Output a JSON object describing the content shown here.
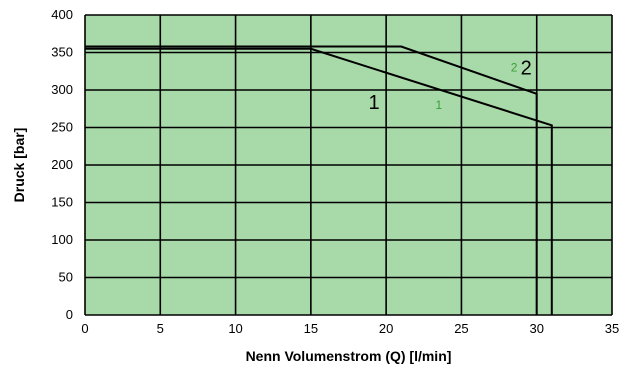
{
  "chart_data": {
    "type": "line",
    "xlabel": "Nenn Volumenstrom (Q) [l/min]",
    "ylabel": "Druck  [bar]",
    "xlim": [
      0,
      35
    ],
    "ylim": [
      0,
      400
    ],
    "xticks": [
      0,
      5,
      10,
      15,
      20,
      25,
      30,
      35
    ],
    "yticks": [
      0,
      50,
      100,
      150,
      200,
      250,
      300,
      350,
      400
    ],
    "grid": true,
    "colors": {
      "plot_background": "#a8d9a8",
      "grid": "#000000",
      "line": "#000000",
      "small_label": "#3aa03a"
    },
    "series": [
      {
        "label_big": "1",
        "label_small": "1",
        "points": [
          [
            0,
            355
          ],
          [
            15,
            355
          ],
          [
            31,
            253
          ],
          [
            31,
            0
          ]
        ]
      },
      {
        "label_big": "2",
        "label_small": "2",
        "points": [
          [
            0,
            358
          ],
          [
            21,
            358
          ],
          [
            30,
            295
          ],
          [
            30,
            0
          ]
        ]
      }
    ]
  }
}
